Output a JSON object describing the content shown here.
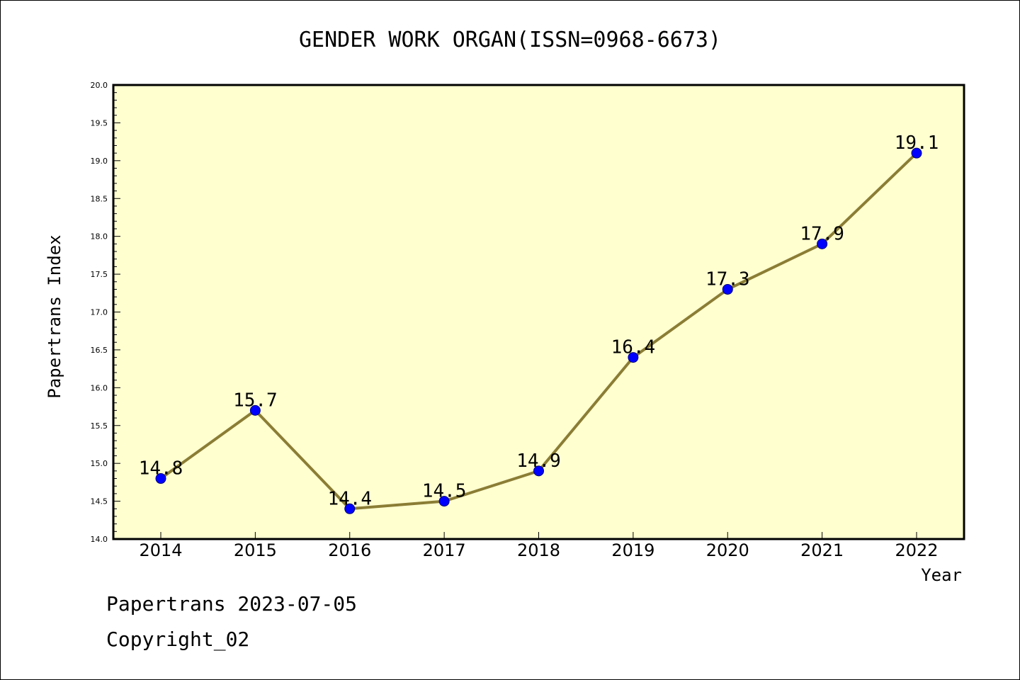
{
  "chart_data": {
    "type": "line",
    "title": "GENDER WORK ORGAN(ISSN=0968-6673)",
    "xlabel": "Year",
    "ylabel": "Papertrans Index",
    "categories": [
      "2014",
      "2015",
      "2016",
      "2017",
      "2018",
      "2019",
      "2020",
      "2021",
      "2022"
    ],
    "values": [
      14.8,
      15.7,
      14.4,
      14.5,
      14.9,
      16.4,
      17.3,
      17.9,
      19.1
    ],
    "data_labels": [
      "14.8",
      "15.7",
      "14.4",
      "14.5",
      "14.9",
      "16.4",
      "17.3",
      "17.9",
      "19.1"
    ],
    "ylim": [
      14.0,
      20.0
    ],
    "yticks": [
      "14.0",
      "14.5",
      "15.0",
      "15.5",
      "16.0",
      "16.5",
      "17.0",
      "17.5",
      "18.0",
      "18.5",
      "19.0",
      "19.5",
      "20.0"
    ],
    "grid": false,
    "legend": "none",
    "colors": {
      "plot_background": "#ffffd0",
      "line": "#8b7d35",
      "marker": "#0000ff",
      "marker_edge": "#000080"
    }
  },
  "footer": {
    "line1": "Papertrans 2023-07-05",
    "line2": "Copyright_02"
  }
}
